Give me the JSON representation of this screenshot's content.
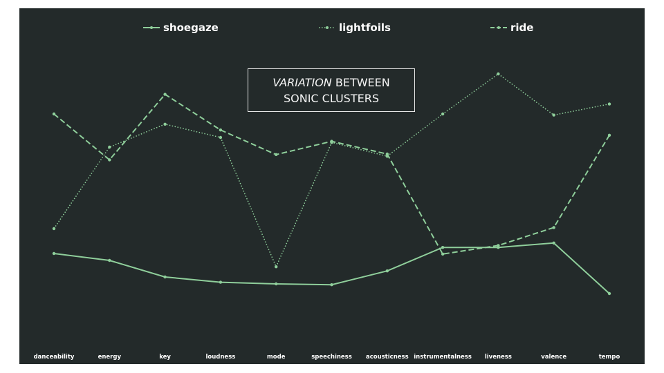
{
  "colors": {
    "background": "#232a2a",
    "series": "#8fcf9b",
    "text": "#ffffff"
  },
  "title": {
    "emphasis": "VARIATION",
    "line1_rest": " BETWEEN",
    "line2": "SONIC CLUSTERS"
  },
  "chart_data": {
    "type": "line",
    "title": "VARIATION BETWEEN SONIC CLUSTERS",
    "xlabel": "",
    "ylabel": "",
    "categories": [
      "danceability",
      "energy",
      "key",
      "loudness",
      "mode",
      "speechiness",
      "acousticness",
      "instrumentalness",
      "liveness",
      "valence",
      "tempo"
    ],
    "ylim": [
      0,
      100
    ],
    "grid": false,
    "legend_position": "top",
    "series": [
      {
        "name": "shoegaze",
        "dash": "solid",
        "values": [
          30,
          27.5,
          21.5,
          19.6,
          19,
          18.7,
          23.7,
          32.2,
          32.2,
          33.8,
          15.5
        ]
      },
      {
        "name": "lightfoils",
        "dash": "dotted",
        "values": [
          39,
          68.5,
          76.8,
          72,
          25.2,
          70.2,
          65.2,
          80.5,
          95,
          80.1,
          84.1
        ]
      },
      {
        "name": "ride",
        "dash": "dashed",
        "values": [
          80.5,
          63.9,
          87.6,
          74.7,
          65.8,
          70.6,
          66,
          29.8,
          32.9,
          39.4,
          72.8
        ]
      }
    ]
  }
}
